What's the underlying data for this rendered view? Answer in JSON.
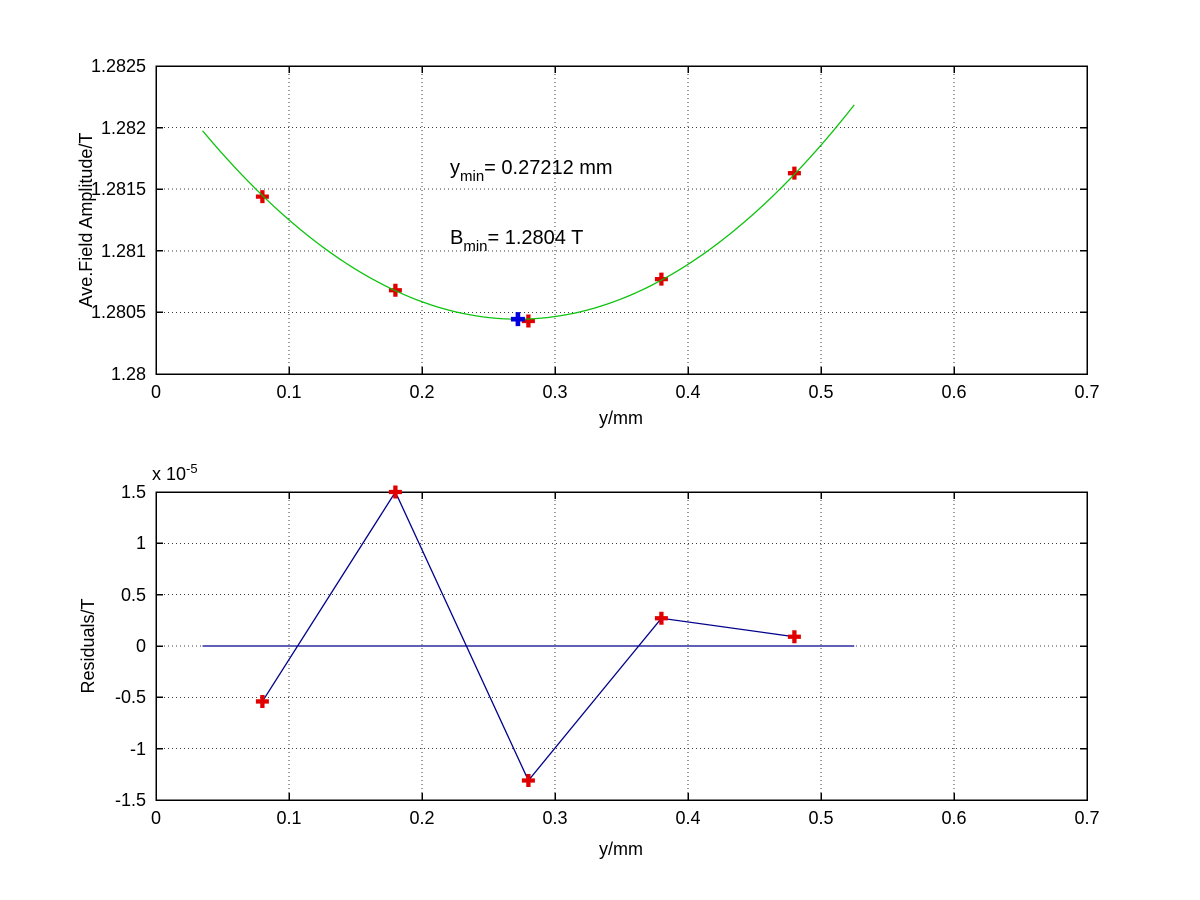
{
  "figure": {
    "background": "#ffffff"
  },
  "colors": {
    "axis": "#000000",
    "grid": "#3a3a3a",
    "data_marker_red": "#e00000",
    "min_marker_blue": "#0000dd",
    "fit_curve_green": "#00c000",
    "residual_line_navy": "#00008b"
  },
  "chart_data": [
    {
      "type": "scatter",
      "title": "",
      "xlabel": "y/mm",
      "ylabel": "Ave.Field Amplitude/T",
      "xlim": [
        0,
        0.7
      ],
      "ylim": [
        1.28,
        1.2825
      ],
      "grid": true,
      "xticks": [
        0,
        0.1,
        0.2,
        0.3,
        0.4,
        0.5,
        0.6,
        0.7
      ],
      "xtick_labels": [
        "0",
        "0.1",
        "0.2",
        "0.3",
        "0.4",
        "0.5",
        "0.6",
        "0.7"
      ],
      "yticks": [
        1.28,
        1.2805,
        1.281,
        1.2815,
        1.282,
        1.2825
      ],
      "ytick_labels": [
        "1.28",
        "1.2805",
        "1.281",
        "1.2815",
        "1.282",
        "1.2825"
      ],
      "points": {
        "x": [
          0.08,
          0.18,
          0.28,
          0.38,
          0.48
        ],
        "y": [
          1.28144,
          1.28068,
          1.28043,
          1.28077,
          1.28163
        ]
      },
      "fit_curve": {
        "shape": "parabola",
        "y_min": 0.27212,
        "B_min": 1.280445,
        "a": 0.0272,
        "x_start": 0.035,
        "x_end": 0.525
      },
      "min_point": {
        "x": 0.27212,
        "y": 1.280445
      },
      "annotations": [
        {
          "base": "y",
          "sub": "min",
          "rest": "= 0.27212 mm"
        },
        {
          "base": "B",
          "sub": "min",
          "rest": "= 1.2804 T"
        }
      ]
    },
    {
      "type": "line",
      "title": "",
      "xlabel": "y/mm",
      "ylabel": "Residuals/T",
      "unit_multiplier": {
        "prefix": "x 10",
        "exponent": "-5"
      },
      "xlim": [
        0,
        0.7
      ],
      "ylim": [
        -1.5,
        1.5
      ],
      "grid": true,
      "xticks": [
        0,
        0.1,
        0.2,
        0.3,
        0.4,
        0.5,
        0.6,
        0.7
      ],
      "xtick_labels": [
        "0",
        "0.1",
        "0.2",
        "0.3",
        "0.4",
        "0.5",
        "0.6",
        "0.7"
      ],
      "yticks": [
        -1.5,
        -1,
        -0.5,
        0,
        0.5,
        1,
        1.5
      ],
      "ytick_labels": [
        "-1.5",
        "-1",
        "-0.5",
        "0",
        "0.5",
        "1",
        "1.5"
      ],
      "points": {
        "x": [
          0.08,
          0.18,
          0.28,
          0.38,
          0.48
        ],
        "y": [
          -0.54,
          1.5,
          -1.31,
          0.27,
          0.09
        ]
      },
      "zero_line": {
        "y": 0,
        "x_start": 0.035,
        "x_end": 0.525
      }
    }
  ]
}
